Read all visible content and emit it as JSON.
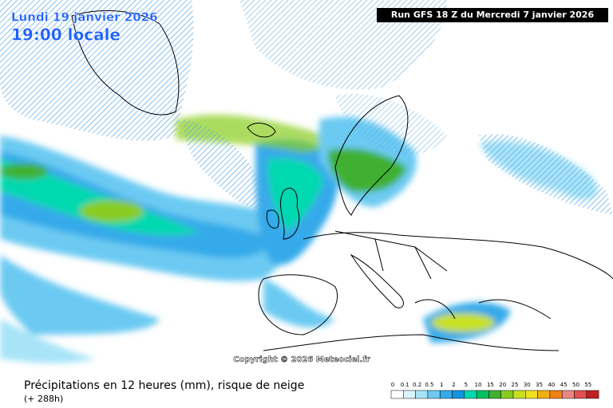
{
  "header": {
    "date": "Lundi 19 janvier 2026",
    "time": "19:00 locale",
    "run": "Run GFS 18 Z du Mercredi 7 janvier 2026"
  },
  "copyright": "Copyright © 2026 Meteociel.fr",
  "footer": {
    "title": "Précipitations en 12 heures (mm), risque de neige",
    "lead": "(+ 288h)"
  },
  "legend": {
    "items": [
      {
        "label": "0",
        "color": "#ffffff"
      },
      {
        "label": "0.1",
        "color": "#d8f4fc"
      },
      {
        "label": "0.2",
        "color": "#a8e4f8"
      },
      {
        "label": "0.5",
        "color": "#6ccaf2"
      },
      {
        "label": "1",
        "color": "#34aaea"
      },
      {
        "label": "2",
        "color": "#1494e0"
      },
      {
        "label": "5",
        "color": "#00d8b0"
      },
      {
        "label": "10",
        "color": "#00c060"
      },
      {
        "label": "15",
        "color": "#40b030"
      },
      {
        "label": "20",
        "color": "#88cc20"
      },
      {
        "label": "25",
        "color": "#c8e020"
      },
      {
        "label": "30",
        "color": "#f0e020"
      },
      {
        "label": "35",
        "color": "#f0b010"
      },
      {
        "label": "40",
        "color": "#f08010"
      },
      {
        "label": "45",
        "color": "#e88880"
      },
      {
        "label": "50",
        "color": "#e05050"
      },
      {
        "label": "55",
        "color": "#c02020"
      }
    ]
  }
}
